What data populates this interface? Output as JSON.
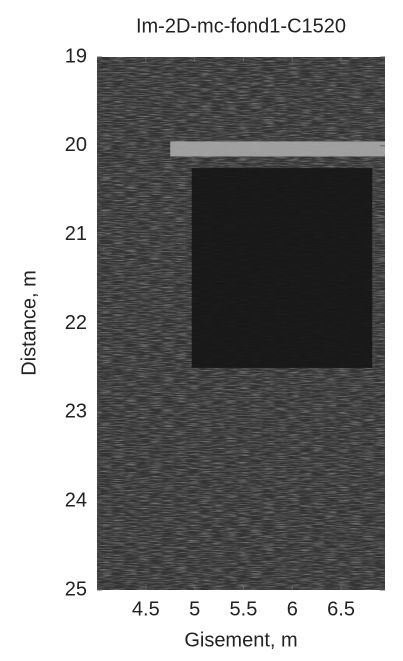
{
  "chart_data": {
    "type": "image",
    "title": "Im-2D-mc-fond1-C1520",
    "xlabel": "Gisement, m",
    "ylabel": "Distance, m",
    "xlim": [
      4.0,
      6.95
    ],
    "ylim": [
      25,
      19
    ],
    "xticks": [
      4.5,
      5,
      5.5,
      6,
      6.5
    ],
    "yticks": [
      19,
      20,
      21,
      22,
      23,
      24,
      25
    ],
    "background_color": "#333333",
    "regions": [
      {
        "x": [
          4.75,
          6.95
        ],
        "y": [
          19.95,
          20.12
        ],
        "color": "#a8a8a8"
      },
      {
        "x": [
          4.97,
          6.82
        ],
        "y": [
          20.25,
          22.5
        ],
        "color": "#161616"
      }
    ]
  }
}
